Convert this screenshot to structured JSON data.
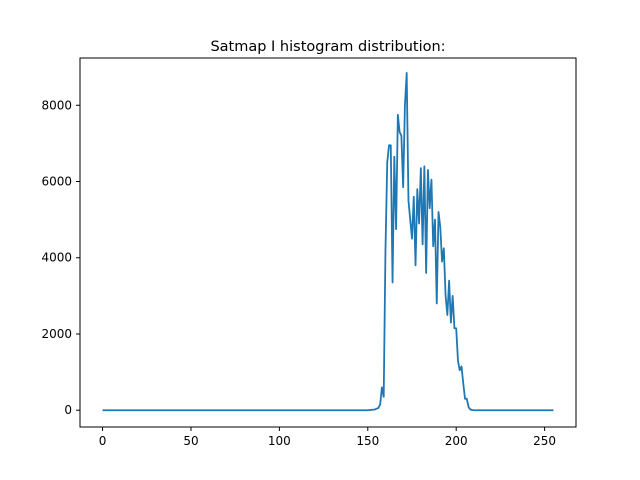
{
  "chart_data": {
    "type": "line",
    "title": "Satmap I histogram distribution:",
    "xlabel": "",
    "ylabel": "",
    "xlim": [
      -12.75,
      267.75
    ],
    "ylim": [
      -440,
      9240
    ],
    "xticks": [
      0,
      50,
      100,
      150,
      200,
      250
    ],
    "yticks": [
      0,
      2000,
      4000,
      6000,
      8000
    ],
    "grid": false,
    "line_color": "#1f77b4",
    "series": [
      {
        "x": [
          0,
          150,
          154,
          156,
          157,
          158,
          159,
          160,
          161,
          162,
          163,
          164,
          165,
          166,
          167,
          168,
          169,
          170,
          171,
          172,
          173,
          174,
          175,
          176,
          177,
          178,
          179,
          180,
          181,
          182,
          183,
          184,
          185,
          186,
          187,
          188,
          189,
          190,
          191,
          192,
          193,
          194,
          195,
          196,
          197,
          198,
          199,
          200,
          201,
          202,
          203,
          204,
          205,
          206,
          207,
          208,
          209,
          210,
          211,
          212,
          213,
          214,
          215,
          216,
          218,
          220,
          255
        ],
        "y": [
          0,
          0,
          20,
          60,
          150,
          600,
          350,
          4200,
          6500,
          6950,
          6950,
          3350,
          6650,
          4750,
          7750,
          7300,
          7200,
          5850,
          8000,
          8850,
          5500,
          5000,
          4500,
          5600,
          3800,
          5800,
          4900,
          6350,
          4350,
          6400,
          3600,
          6300,
          5300,
          6050,
          4300,
          5000,
          2800,
          5200,
          4800,
          3900,
          4250,
          3000,
          2500,
          3400,
          2300,
          3000,
          2150,
          2150,
          1300,
          1050,
          1150,
          700,
          300,
          300,
          80,
          20,
          5,
          0,
          0,
          0,
          0,
          0,
          0,
          0,
          0,
          0,
          0
        ]
      }
    ]
  }
}
